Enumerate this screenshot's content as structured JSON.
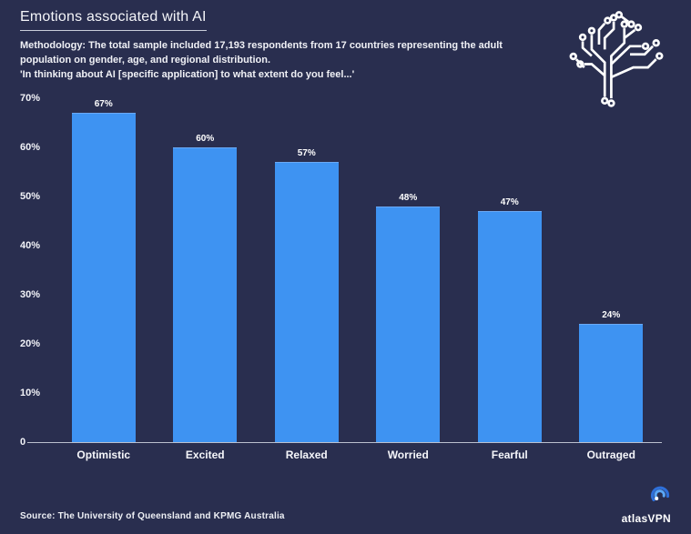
{
  "page": {
    "background": "#292e4f",
    "accent_blue": "#3e93f2"
  },
  "header": {
    "title": "Emotions associated with AI",
    "methodology": "Methodology: The total sample included 17,193 respondents from 17 countries representing the adult population on gender, age, and regional distribution.",
    "question": "'In thinking about AI [specific application] to what extent do you feel...'"
  },
  "chart_data": {
    "type": "bar",
    "title": "Emotions associated with AI",
    "categories": [
      "Optimistic",
      "Excited",
      "Relaxed",
      "Worried",
      "Fearful",
      "Outraged"
    ],
    "values": [
      67,
      60,
      57,
      48,
      47,
      24
    ],
    "value_labels": [
      "67%",
      "60%",
      "57%",
      "48%",
      "47%",
      "24%"
    ],
    "xlabel": "",
    "ylabel": "",
    "ylim": [
      0,
      70
    ],
    "y_ticks": [
      "70%",
      "60%",
      "50%",
      "40%",
      "30%",
      "20%",
      "10%",
      "0"
    ],
    "grid": false,
    "legend": false,
    "bar_color": "#3e93f2"
  },
  "footer": {
    "source": "Source: The University of Queensland and KPMG Australia",
    "brand": "atlasVPN"
  },
  "icons": {
    "brain_circuit": "circuit-brain-icon",
    "brand_swirl": "atlasvpn-swirl-icon"
  }
}
